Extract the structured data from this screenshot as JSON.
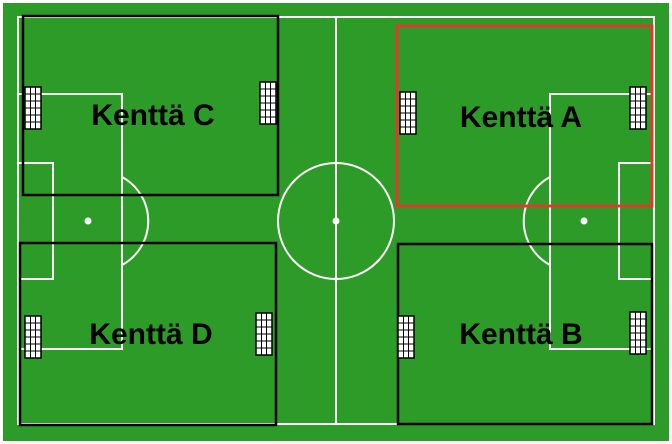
{
  "pitch": {
    "grass_color": "#2d9b27",
    "line_color": "#ffffff",
    "divider_color": "#000000",
    "highlight_color": "#e4382c"
  },
  "fields": [
    {
      "id": "c",
      "label": "Kenttä C",
      "highlighted": false
    },
    {
      "id": "a",
      "label": "Kenttä A",
      "highlighted": true
    },
    {
      "id": "d",
      "label": "Kenttä D",
      "highlighted": false
    },
    {
      "id": "b",
      "label": "Kenttä B",
      "highlighted": false
    }
  ],
  "icons": {
    "goal": "mini-goal-icon"
  }
}
